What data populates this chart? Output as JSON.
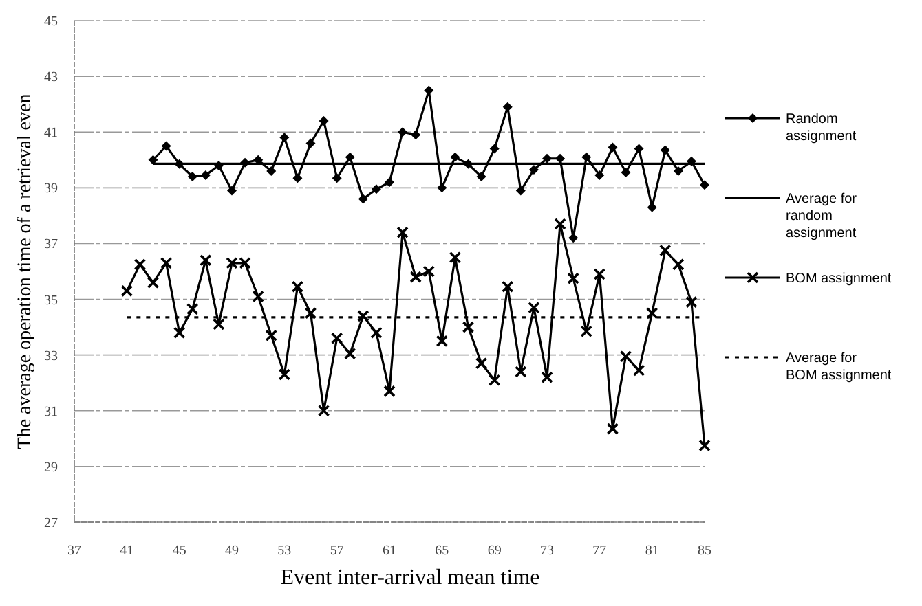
{
  "chart_data": {
    "type": "line",
    "xlabel": "Event inter-arrival mean time",
    "ylabel": "The average operation time of a retrieval even",
    "xlim": [
      37,
      85
    ],
    "xticks": [
      37,
      41,
      45,
      49,
      53,
      57,
      61,
      65,
      69,
      73,
      77,
      81,
      85
    ],
    "ylim": [
      27,
      45
    ],
    "yticks": [
      27,
      29,
      31,
      33,
      35,
      37,
      39,
      41,
      43,
      45
    ],
    "grid": "y",
    "legend": "right",
    "series": [
      {
        "name": "Random assignment",
        "color": "#000000",
        "marker": "diamond",
        "line_style": "solid",
        "x": [
          43,
          44,
          45,
          46,
          47,
          48,
          49,
          50,
          51,
          52,
          53,
          54,
          55,
          56,
          57,
          58,
          59,
          60,
          61,
          62,
          63,
          64,
          65,
          66,
          67,
          68,
          69,
          70,
          71,
          72,
          73,
          74,
          75,
          76,
          77,
          78,
          79,
          80,
          81,
          82,
          83,
          84,
          85
        ],
        "values": [
          40.0,
          40.5,
          39.85,
          39.4,
          39.45,
          39.8,
          38.9,
          39.9,
          40.0,
          39.6,
          40.8,
          39.35,
          40.6,
          41.4,
          39.35,
          40.1,
          38.6,
          38.95,
          39.2,
          41.0,
          40.9,
          42.5,
          39.0,
          40.1,
          39.85,
          39.4,
          40.4,
          41.9,
          38.9,
          39.65,
          40.05,
          40.05,
          37.2,
          40.1,
          39.45,
          40.45,
          39.55,
          40.4,
          38.3,
          40.35,
          39.6,
          39.95,
          39.1
        ]
      },
      {
        "name": "Average for random assignment",
        "color": "#000000",
        "marker": "none",
        "line_style": "solid",
        "x": [
          43,
          85
        ],
        "values": [
          39.86,
          39.86
        ]
      },
      {
        "name": "BOM assignment",
        "color": "#000000",
        "marker": "cross",
        "line_style": "solid",
        "x": [
          41,
          42,
          43,
          44,
          45,
          46,
          47,
          48,
          49,
          50,
          51,
          52,
          53,
          54,
          55,
          56,
          57,
          58,
          59,
          60,
          61,
          62,
          63,
          64,
          65,
          66,
          67,
          68,
          69,
          70,
          71,
          72,
          73,
          74,
          75,
          76,
          77,
          78,
          79,
          80,
          81,
          82,
          83,
          84,
          85
        ],
        "values": [
          35.3,
          36.25,
          35.6,
          36.3,
          33.8,
          34.65,
          36.4,
          34.1,
          36.3,
          36.3,
          35.1,
          33.7,
          32.3,
          35.45,
          34.5,
          31.0,
          33.6,
          33.05,
          34.4,
          33.8,
          31.7,
          37.4,
          35.8,
          36.0,
          33.5,
          36.5,
          34.0,
          32.7,
          32.1,
          35.45,
          32.4,
          34.7,
          32.2,
          37.7,
          35.75,
          33.85,
          35.9,
          30.35,
          32.95,
          32.45,
          34.5,
          36.75,
          36.25,
          34.9,
          29.75
        ]
      },
      {
        "name": "Average for BOM assignment",
        "color": "#000000",
        "marker": "none",
        "line_style": "dashed",
        "x": [
          41,
          85
        ],
        "values": [
          34.35,
          34.35
        ]
      }
    ]
  }
}
